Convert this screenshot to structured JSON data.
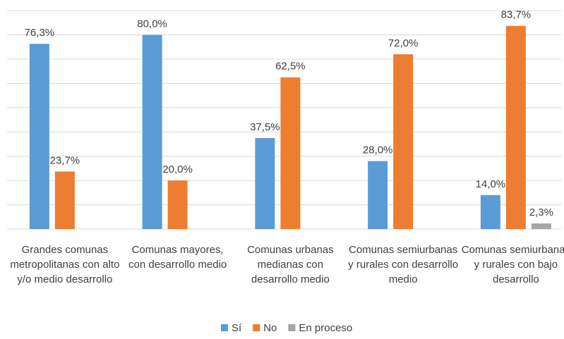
{
  "chart_data": {
    "type": "bar",
    "categories": [
      "Grandes comunas metropolitanas con alto y/o medio desarrollo",
      "Comunas mayores, con desarrollo medio",
      "Comunas urbanas medianas con desarrollo medio",
      "Comunas semiurbanas y rurales con desarrollo medio",
      "Comunas semiurbanas y rurales con bajo desarrollo"
    ],
    "series": [
      {
        "name": "Sí",
        "color": "#5b9bd5",
        "values": [
          76.3,
          80.0,
          37.5,
          28.0,
          14.0
        ],
        "value_labels": [
          "76,3%",
          "80,0%",
          "37,5%",
          "28,0%",
          "14,0%"
        ]
      },
      {
        "name": "No",
        "color": "#ed7d31",
        "values": [
          23.7,
          20.0,
          62.5,
          72.0,
          83.7
        ],
        "value_labels": [
          "23,7%",
          "20,0%",
          "62,5%",
          "72,0%",
          "83,7%"
        ]
      },
      {
        "name": "En proceso",
        "color": "#a5a5a5",
        "values": [
          null,
          null,
          null,
          null,
          2.3
        ],
        "value_labels": [
          null,
          null,
          null,
          null,
          "2,3%"
        ]
      }
    ],
    "ylim": [
      0,
      90
    ],
    "yticks": [
      0,
      10,
      20,
      30,
      40,
      50,
      60,
      70,
      80,
      90
    ],
    "grid": true,
    "legend": "bottom"
  }
}
